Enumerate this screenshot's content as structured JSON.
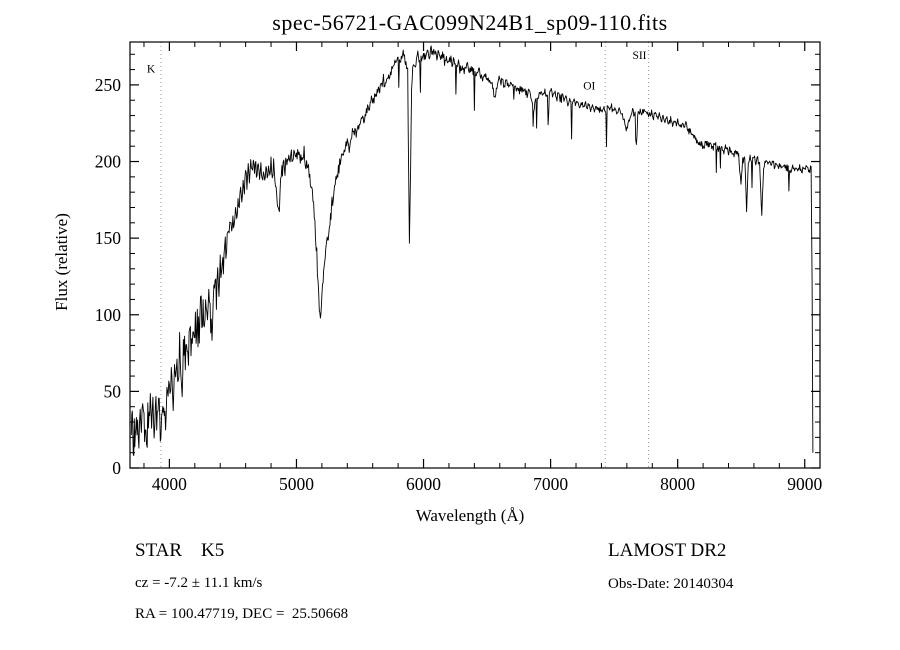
{
  "chart_data": {
    "type": "line",
    "title": "spec-56721-GAC099N24B1_sp09-110.fits",
    "xlabel": "Wavelength (Å)",
    "ylabel": "Flux (relative)",
    "xlim": [
      3690,
      9120
    ],
    "ylim": [
      0,
      278
    ],
    "x_major_ticks": [
      4000,
      5000,
      6000,
      7000,
      8000,
      9000
    ],
    "x_minor_step": 200,
    "y_major_ticks": [
      0,
      50,
      100,
      150,
      200,
      250
    ],
    "y_minor_step": 10,
    "grid": false,
    "legend": "none",
    "line_color": "#000000",
    "annotation_line_color": "#9a9a9a",
    "annotations": [
      {
        "label": "K",
        "wavelength": 3933,
        "label_dx": -14,
        "label_flux": 258
      },
      {
        "label": "OI",
        "wavelength": 7430,
        "label_dx": -22,
        "label_flux": 247
      },
      {
        "label": "SII",
        "wavelength": 7770,
        "label_dx": -16,
        "label_flux": 267
      }
    ],
    "points": [
      [
        3700,
        18
      ],
      [
        3708,
        36
      ],
      [
        3716,
        12
      ],
      [
        3724,
        30
      ],
      [
        3732,
        20
      ],
      [
        3740,
        38
      ],
      [
        3750,
        24
      ],
      [
        3760,
        16
      ],
      [
        3770,
        34
      ],
      [
        3780,
        28
      ],
      [
        3790,
        42
      ],
      [
        3800,
        22
      ],
      [
        3810,
        32
      ],
      [
        3820,
        18
      ],
      [
        3830,
        36
      ],
      [
        3840,
        26
      ],
      [
        3850,
        44
      ],
      [
        3860,
        30
      ],
      [
        3870,
        38
      ],
      [
        3880,
        24
      ],
      [
        3890,
        42
      ],
      [
        3900,
        32
      ],
      [
        3910,
        28
      ],
      [
        3920,
        38
      ],
      [
        3933,
        14
      ],
      [
        3944,
        36
      ],
      [
        3952,
        48
      ],
      [
        3960,
        38
      ],
      [
        3970,
        30
      ],
      [
        3980,
        46
      ],
      [
        3990,
        40
      ],
      [
        4000,
        56
      ],
      [
        4010,
        44
      ],
      [
        4020,
        60
      ],
      [
        4030,
        48
      ],
      [
        4040,
        68
      ],
      [
        4050,
        54
      ],
      [
        4060,
        72
      ],
      [
        4070,
        58
      ],
      [
        4080,
        76
      ],
      [
        4090,
        62
      ],
      [
        4101,
        52
      ],
      [
        4110,
        74
      ],
      [
        4120,
        82
      ],
      [
        4130,
        66
      ],
      [
        4140,
        84
      ],
      [
        4150,
        70
      ],
      [
        4160,
        90
      ],
      [
        4170,
        76
      ],
      [
        4180,
        92
      ],
      [
        4190,
        78
      ],
      [
        4200,
        98
      ],
      [
        4210,
        84
      ],
      [
        4220,
        100
      ],
      [
        4230,
        88
      ],
      [
        4240,
        104
      ],
      [
        4250,
        110
      ],
      [
        4260,
        92
      ],
      [
        4270,
        106
      ],
      [
        4280,
        96
      ],
      [
        4290,
        108
      ],
      [
        4300,
        98
      ],
      [
        4310,
        112
      ],
      [
        4320,
        104
      ],
      [
        4330,
        96
      ],
      [
        4340,
        90
      ],
      [
        4350,
        118
      ],
      [
        4360,
        126
      ],
      [
        4370,
        112
      ],
      [
        4380,
        130
      ],
      [
        4390,
        118
      ],
      [
        4400,
        140
      ],
      [
        4410,
        128
      ],
      [
        4420,
        146
      ],
      [
        4430,
        134
      ],
      [
        4440,
        152
      ],
      [
        4450,
        142
      ],
      [
        4460,
        156
      ],
      [
        4470,
        148
      ],
      [
        4480,
        162
      ],
      [
        4490,
        152
      ],
      [
        4500,
        168
      ],
      [
        4510,
        158
      ],
      [
        4520,
        172
      ],
      [
        4530,
        162
      ],
      [
        4540,
        178
      ],
      [
        4550,
        170
      ],
      [
        4560,
        182
      ],
      [
        4570,
        174
      ],
      [
        4580,
        188
      ],
      [
        4590,
        180
      ],
      [
        4600,
        194
      ],
      [
        4610,
        186
      ],
      [
        4620,
        196
      ],
      [
        4630,
        188
      ],
      [
        4640,
        198
      ],
      [
        4650,
        192
      ],
      [
        4660,
        200
      ],
      [
        4670,
        193
      ],
      [
        4680,
        197
      ],
      [
        4690,
        190
      ],
      [
        4700,
        199
      ],
      [
        4710,
        192
      ],
      [
        4720,
        196
      ],
      [
        4730,
        189
      ],
      [
        4740,
        194
      ],
      [
        4750,
        188
      ],
      [
        4760,
        196
      ],
      [
        4770,
        190
      ],
      [
        4780,
        197
      ],
      [
        4790,
        191
      ],
      [
        4800,
        198
      ],
      [
        4810,
        192
      ],
      [
        4820,
        196
      ],
      [
        4830,
        188
      ],
      [
        4840,
        184
      ],
      [
        4861,
        166
      ],
      [
        4875,
        186
      ],
      [
        4890,
        196
      ],
      [
        4900,
        201
      ],
      [
        4910,
        195
      ],
      [
        4920,
        204
      ],
      [
        4930,
        198
      ],
      [
        4940,
        203
      ],
      [
        4950,
        197
      ],
      [
        4960,
        206
      ],
      [
        4970,
        200
      ],
      [
        4980,
        207
      ],
      [
        4990,
        202
      ],
      [
        5000,
        209
      ],
      [
        5010,
        204
      ],
      [
        5020,
        208
      ],
      [
        5030,
        202
      ],
      [
        5040,
        206
      ],
      [
        5050,
        200
      ],
      [
        5060,
        204
      ],
      [
        5070,
        197
      ],
      [
        5080,
        200
      ],
      [
        5090,
        193
      ],
      [
        5100,
        195
      ],
      [
        5110,
        188
      ],
      [
        5120,
        182
      ],
      [
        5130,
        174
      ],
      [
        5140,
        166
      ],
      [
        5150,
        152
      ],
      [
        5160,
        138
      ],
      [
        5170,
        118
      ],
      [
        5180,
        104
      ],
      [
        5192,
        100
      ],
      [
        5205,
        118
      ],
      [
        5218,
        132
      ],
      [
        5230,
        142
      ],
      [
        5242,
        150
      ],
      [
        5255,
        158
      ],
      [
        5268,
        164
      ],
      [
        5280,
        172
      ],
      [
        5295,
        180
      ],
      [
        5310,
        188
      ],
      [
        5325,
        193
      ],
      [
        5340,
        198
      ],
      [
        5355,
        203
      ],
      [
        5370,
        207
      ],
      [
        5385,
        210
      ],
      [
        5400,
        213
      ],
      [
        5415,
        209
      ],
      [
        5430,
        215
      ],
      [
        5445,
        219
      ],
      [
        5460,
        222
      ],
      [
        5475,
        219
      ],
      [
        5490,
        224
      ],
      [
        5505,
        227
      ],
      [
        5520,
        230
      ],
      [
        5535,
        227
      ],
      [
        5550,
        232
      ],
      [
        5565,
        235
      ],
      [
        5580,
        238
      ],
      [
        5595,
        241
      ],
      [
        5610,
        239
      ],
      [
        5625,
        244
      ],
      [
        5640,
        246
      ],
      [
        5655,
        248
      ],
      [
        5670,
        251
      ],
      [
        5685,
        253
      ],
      [
        5700,
        250
      ],
      [
        5715,
        255
      ],
      [
        5730,
        257
      ],
      [
        5745,
        259
      ],
      [
        5760,
        262
      ],
      [
        5775,
        265
      ],
      [
        5790,
        267
      ],
      [
        5805,
        269
      ],
      [
        5820,
        265
      ],
      [
        5835,
        270
      ],
      [
        5850,
        268
      ],
      [
        5862,
        264
      ],
      [
        5875,
        258
      ],
      [
        5889,
        148
      ],
      [
        5898,
        196
      ],
      [
        5906,
        248
      ],
      [
        5915,
        260
      ],
      [
        5925,
        265
      ],
      [
        5935,
        262
      ],
      [
        5945,
        267
      ],
      [
        5955,
        269
      ],
      [
        5965,
        266
      ],
      [
        5975,
        270
      ],
      [
        5985,
        267
      ],
      [
        6000,
        271
      ],
      [
        6015,
        268
      ],
      [
        6030,
        272
      ],
      [
        6045,
        269
      ],
      [
        6060,
        273
      ],
      [
        6075,
        270
      ],
      [
        6090,
        272
      ],
      [
        6105,
        268
      ],
      [
        6120,
        271
      ],
      [
        6135,
        267
      ],
      [
        6150,
        270
      ],
      [
        6165,
        266
      ],
      [
        6180,
        268
      ],
      [
        6195,
        264
      ],
      [
        6210,
        267
      ],
      [
        6225,
        263
      ],
      [
        6240,
        266
      ],
      [
        6255,
        262
      ],
      [
        6270,
        264
      ],
      [
        6285,
        260
      ],
      [
        6300,
        262
      ],
      [
        6315,
        258
      ],
      [
        6330,
        261
      ],
      [
        6345,
        263
      ],
      [
        6360,
        259
      ],
      [
        6375,
        262
      ],
      [
        6390,
        258
      ],
      [
        6405,
        260
      ],
      [
        6420,
        256
      ],
      [
        6435,
        259
      ],
      [
        6450,
        257
      ],
      [
        6465,
        254
      ],
      [
        6480,
        257
      ],
      [
        6495,
        254
      ],
      [
        6510,
        256
      ],
      [
        6525,
        252
      ],
      [
        6540,
        250
      ],
      [
        6563,
        241
      ],
      [
        6578,
        250
      ],
      [
        6590,
        254
      ],
      [
        6605,
        251
      ],
      [
        6620,
        253
      ],
      [
        6635,
        250
      ],
      [
        6650,
        252
      ],
      [
        6665,
        249
      ],
      [
        6680,
        251
      ],
      [
        6695,
        248
      ],
      [
        6710,
        250
      ],
      [
        6725,
        247
      ],
      [
        6740,
        249
      ],
      [
        6755,
        246
      ],
      [
        6770,
        248
      ],
      [
        6785,
        245
      ],
      [
        6800,
        247
      ],
      [
        6815,
        244
      ],
      [
        6830,
        246
      ],
      [
        6845,
        243
      ],
      [
        6867,
        233
      ],
      [
        6880,
        241
      ],
      [
        6895,
        245
      ],
      [
        6910,
        243
      ],
      [
        6925,
        246
      ],
      [
        6940,
        243
      ],
      [
        6955,
        245
      ],
      [
        6970,
        242
      ],
      [
        6985,
        244
      ],
      [
        7000,
        246
      ],
      [
        7015,
        243
      ],
      [
        7030,
        245
      ],
      [
        7045,
        242
      ],
      [
        7060,
        244
      ],
      [
        7075,
        240
      ],
      [
        7090,
        243
      ],
      [
        7105,
        239
      ],
      [
        7120,
        242
      ],
      [
        7135,
        238
      ],
      [
        7150,
        241
      ],
      [
        7165,
        238
      ],
      [
        7180,
        240
      ],
      [
        7195,
        237
      ],
      [
        7210,
        239
      ],
      [
        7225,
        236
      ],
      [
        7240,
        238
      ],
      [
        7255,
        236
      ],
      [
        7270,
        238
      ],
      [
        7285,
        235
      ],
      [
        7300,
        237
      ],
      [
        7315,
        234
      ],
      [
        7330,
        236
      ],
      [
        7345,
        234
      ],
      [
        7360,
        236
      ],
      [
        7375,
        233
      ],
      [
        7390,
        235
      ],
      [
        7405,
        233
      ],
      [
        7420,
        235
      ],
      [
        7435,
        232
      ],
      [
        7450,
        237
      ],
      [
        7465,
        234
      ],
      [
        7480,
        236
      ],
      [
        7495,
        233
      ],
      [
        7510,
        235
      ],
      [
        7525,
        232
      ],
      [
        7540,
        234
      ],
      [
        7555,
        231
      ],
      [
        7570,
        229
      ],
      [
        7585,
        224
      ],
      [
        7600,
        221
      ],
      [
        7615,
        227
      ],
      [
        7630,
        231
      ],
      [
        7645,
        233
      ],
      [
        7660,
        231
      ],
      [
        7675,
        233
      ],
      [
        7690,
        232
      ],
      [
        7705,
        234
      ],
      [
        7720,
        231
      ],
      [
        7735,
        233
      ],
      [
        7750,
        231
      ],
      [
        7765,
        232
      ],
      [
        7780,
        230
      ],
      [
        7795,
        231
      ],
      [
        7810,
        229
      ],
      [
        7825,
        231
      ],
      [
        7840,
        228
      ],
      [
        7855,
        230
      ],
      [
        7870,
        228
      ],
      [
        7885,
        229
      ],
      [
        7900,
        227
      ],
      [
        7915,
        229
      ],
      [
        7930,
        226
      ],
      [
        7945,
        228
      ],
      [
        7960,
        225
      ],
      [
        7975,
        227
      ],
      [
        7990,
        224
      ],
      [
        8005,
        226
      ],
      [
        8020,
        223
      ],
      [
        8035,
        225
      ],
      [
        8050,
        222
      ],
      [
        8065,
        224
      ],
      [
        8080,
        221
      ],
      [
        8100,
        219
      ],
      [
        8120,
        217
      ],
      [
        8140,
        215
      ],
      [
        8160,
        213
      ],
      [
        8180,
        211
      ],
      [
        8200,
        210
      ],
      [
        8220,
        212
      ],
      [
        8240,
        210
      ],
      [
        8260,
        212
      ],
      [
        8280,
        209
      ],
      [
        8300,
        211
      ],
      [
        8320,
        208
      ],
      [
        8340,
        210
      ],
      [
        8360,
        207
      ],
      [
        8380,
        209
      ],
      [
        8400,
        207
      ],
      [
        8420,
        208
      ],
      [
        8440,
        205
      ],
      [
        8460,
        206
      ],
      [
        8480,
        203
      ],
      [
        8498,
        186
      ],
      [
        8512,
        200
      ],
      [
        8528,
        203
      ],
      [
        8542,
        169
      ],
      [
        8556,
        198
      ],
      [
        8570,
        202
      ],
      [
        8585,
        200
      ],
      [
        8600,
        203
      ],
      [
        8615,
        200
      ],
      [
        8630,
        202
      ],
      [
        8645,
        198
      ],
      [
        8662,
        165
      ],
      [
        8676,
        196
      ],
      [
        8690,
        201
      ],
      [
        8705,
        198
      ],
      [
        8720,
        200
      ],
      [
        8735,
        197
      ],
      [
        8750,
        199
      ],
      [
        8765,
        196
      ],
      [
        8780,
        198
      ],
      [
        8795,
        196
      ],
      [
        8810,
        198
      ],
      [
        8825,
        195
      ],
      [
        8840,
        197
      ],
      [
        8855,
        195
      ],
      [
        8870,
        197
      ],
      [
        8885,
        194
      ],
      [
        8900,
        196
      ],
      [
        8915,
        194
      ],
      [
        8930,
        196
      ],
      [
        8945,
        194
      ],
      [
        8960,
        196
      ],
      [
        8975,
        194
      ],
      [
        8990,
        196
      ],
      [
        9005,
        195
      ],
      [
        9020,
        196
      ],
      [
        9035,
        194
      ],
      [
        9050,
        196
      ],
      [
        9058,
        120
      ],
      [
        9064,
        10
      ]
    ],
    "noise": {
      "seed": 1234567,
      "step": 4,
      "regions": [
        [
          3690,
          4450,
          16
        ],
        [
          4450,
          5140,
          7
        ],
        [
          5140,
          5350,
          7
        ],
        [
          5350,
          5860,
          5
        ],
        [
          5860,
          7200,
          4
        ],
        [
          7200,
          8480,
          3
        ],
        [
          8480,
          9050,
          3
        ],
        [
          9050,
          9120,
          2
        ]
      ],
      "spike_probability": 0.02,
      "spike_depth": 26,
      "spike_min_wavelength": 5500,
      "spike_max_wavelength": 9000
    }
  },
  "footer": {
    "class_label": "STAR    K5",
    "survey": "LAMOST DR2",
    "cz": "cz = -7.2 ± 11.1 km/s",
    "obs_date": "Obs-Date: 20140304",
    "ra_dec": "RA = 100.47719, DEC =  25.50668"
  }
}
